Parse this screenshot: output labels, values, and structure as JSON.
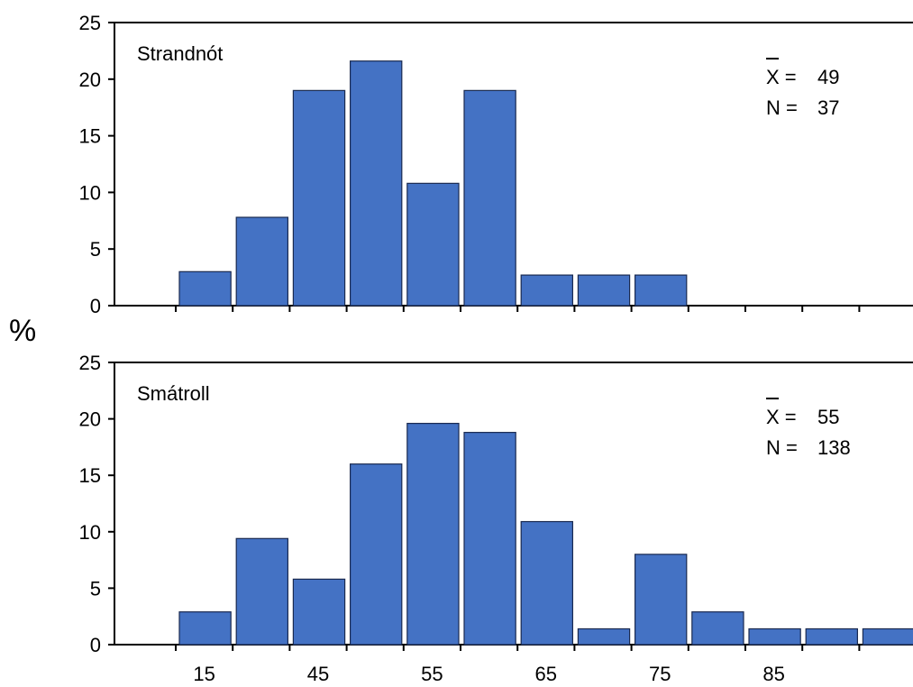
{
  "chart_data": {
    "type": "bar",
    "ylabel": "%",
    "ylim": [
      0,
      25
    ],
    "yticks": [
      0,
      5,
      10,
      15,
      20,
      25
    ],
    "xtick_labels": [
      "15",
      "45",
      "55",
      "65",
      "75",
      "85"
    ],
    "grid": false,
    "panels": [
      {
        "label": "Strandnót",
        "xbar_symbol": "X",
        "mean_label": "X = ",
        "mean": "49",
        "n_label": "N = ",
        "n": "37",
        "values": [
          3,
          7.8,
          19,
          21.6,
          10.8,
          19,
          2.7,
          2.7,
          2.7
        ]
      },
      {
        "label": "Smátroll",
        "xbar_symbol": "X",
        "mean_label": "X = ",
        "mean": "55",
        "n_label": "N = ",
        "n": "138",
        "values": [
          2.9,
          9.4,
          5.8,
          16,
          19.6,
          18.8,
          10.9,
          1.4,
          8,
          2.9,
          1.4,
          1.4,
          1.4
        ]
      }
    ],
    "colors": {
      "bar_fill": "#4472c4",
      "bar_stroke": "#1a2a50",
      "axis": "#000000"
    }
  }
}
